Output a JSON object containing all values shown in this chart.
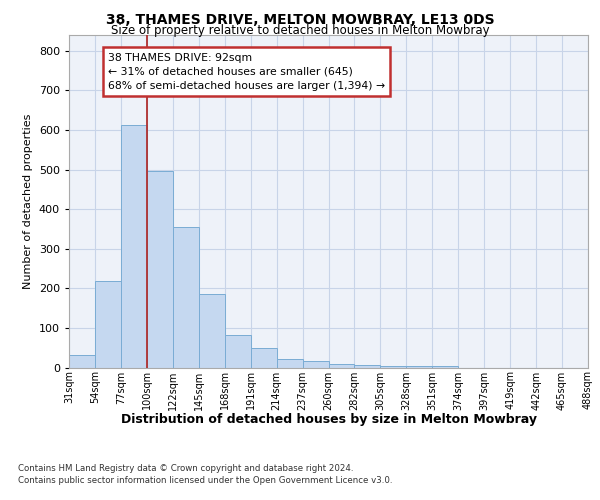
{
  "title1": "38, THAMES DRIVE, MELTON MOWBRAY, LE13 0DS",
  "title2": "Size of property relative to detached houses in Melton Mowbray",
  "xlabel": "Distribution of detached houses by size in Melton Mowbray",
  "ylabel": "Number of detached properties",
  "bar_values": [
    32,
    218,
    612,
    497,
    355,
    185,
    83,
    50,
    22,
    16,
    10,
    6,
    5,
    5,
    4,
    0,
    0,
    0,
    0,
    0
  ],
  "categories": [
    "31sqm",
    "54sqm",
    "77sqm",
    "100sqm",
    "122sqm",
    "145sqm",
    "168sqm",
    "191sqm",
    "214sqm",
    "237sqm",
    "260sqm",
    "282sqm",
    "305sqm",
    "328sqm",
    "351sqm",
    "374sqm",
    "397sqm",
    "419sqm",
    "442sqm",
    "465sqm",
    "488sqm"
  ],
  "bar_color": "#c5d8f0",
  "bar_edge_color": "#7aacd4",
  "grid_color": "#c8d4e8",
  "vline_color": "#b03030",
  "annotation_text": "38 THAMES DRIVE: 92sqm\n← 31% of detached houses are smaller (645)\n68% of semi-detached houses are larger (1,394) →",
  "annotation_box_color": "#c03030",
  "ylim": [
    0,
    840
  ],
  "yticks": [
    0,
    100,
    200,
    300,
    400,
    500,
    600,
    700,
    800
  ],
  "footer1": "Contains HM Land Registry data © Crown copyright and database right 2024.",
  "footer2": "Contains public sector information licensed under the Open Government Licence v3.0.",
  "bg_color": "#eef2f9"
}
